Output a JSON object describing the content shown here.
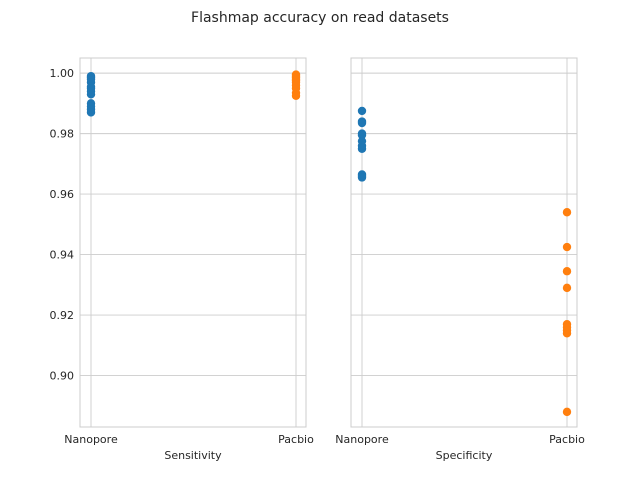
{
  "figure_title": "Flashmap accuracy on read datasets",
  "colors": {
    "nanopore": "#1f77b4",
    "pacbio": "#ff7f0e",
    "grid": "#cccccc",
    "axes": "#cccccc"
  },
  "chart_data": [
    {
      "type": "scatter",
      "title": "",
      "xlabel": "Sensitivity",
      "ylabel": "",
      "categories": [
        "Nanopore",
        "Pacbio"
      ],
      "ylim": [
        0.883,
        1.005
      ],
      "yticks": [
        "0.90",
        "0.92",
        "0.94",
        "0.96",
        "0.98",
        "1.00"
      ],
      "ytick_values": [
        0.9,
        0.92,
        0.94,
        0.96,
        0.98,
        1.0
      ],
      "grid": true,
      "series": [
        {
          "category": "Nanopore",
          "color": "#1f77b4",
          "values": [
            0.999,
            0.9985,
            0.998,
            0.997,
            0.9955,
            0.995,
            0.994,
            0.993,
            0.99,
            0.989,
            0.988,
            0.987
          ]
        },
        {
          "category": "Pacbio",
          "color": "#ff7f0e",
          "values": [
            0.9995,
            0.999,
            0.9985,
            0.998,
            0.9975,
            0.997,
            0.996,
            0.995,
            0.9935,
            0.9925
          ]
        }
      ]
    },
    {
      "type": "scatter",
      "title": "",
      "xlabel": "Specificity",
      "ylabel": "",
      "categories": [
        "Nanopore",
        "Pacbio"
      ],
      "ylim": [
        0.883,
        1.005
      ],
      "grid": true,
      "shared_y": true,
      "series": [
        {
          "category": "Nanopore",
          "color": "#1f77b4",
          "values": [
            0.9875,
            0.984,
            0.9835,
            0.98,
            0.9795,
            0.9775,
            0.976,
            0.975,
            0.9665,
            0.966,
            0.9655
          ]
        },
        {
          "category": "Pacbio",
          "color": "#ff7f0e",
          "values": [
            0.954,
            0.9425,
            0.9345,
            0.929,
            0.917,
            0.916,
            0.915,
            0.914,
            0.888
          ]
        }
      ]
    }
  ]
}
